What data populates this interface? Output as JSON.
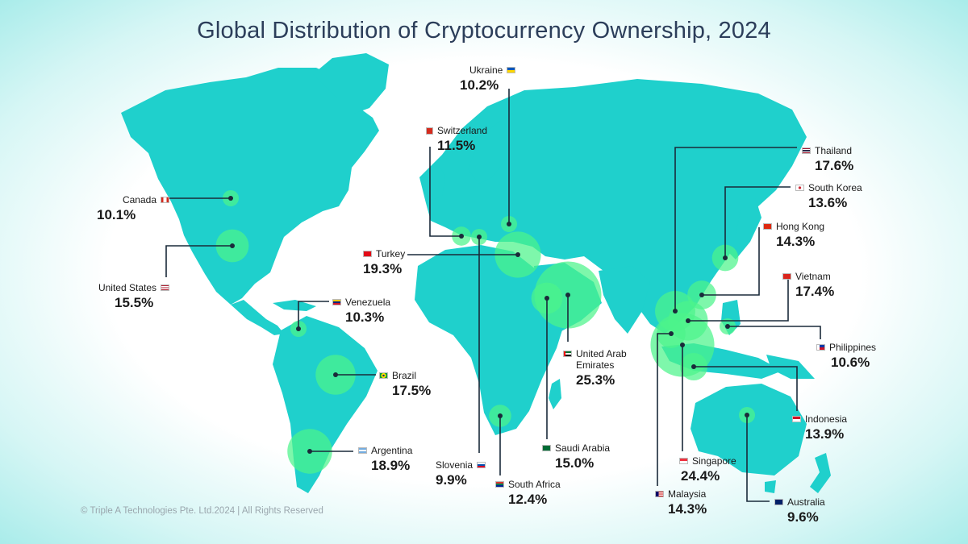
{
  "title": "Global Distribution of Cryptocurrency Ownership, 2024",
  "footer": "© Triple A Technologies Pte. Ltd.2024 | All Rights Reserved",
  "colors": {
    "land": "#1fd0cc",
    "bubble": "#4cf48a",
    "line": "#1a2a3a"
  },
  "countries": [
    {
      "key": "canada",
      "name": "Canada",
      "value": "10.1%",
      "pct": 10.1,
      "flag": "flag-canada"
    },
    {
      "key": "us",
      "name": "United States",
      "value": "15.5%",
      "pct": 15.5,
      "flag": "flag-usa"
    },
    {
      "key": "venezuela",
      "name": "Venezuela",
      "value": "10.3%",
      "pct": 10.3,
      "flag": "flag-venezuela"
    },
    {
      "key": "brazil",
      "name": "Brazil",
      "value": "17.5%",
      "pct": 17.5,
      "flag": "flag-brazil"
    },
    {
      "key": "argentina",
      "name": "Argentina",
      "value": "18.9%",
      "pct": 18.9,
      "flag": "flag-argentina"
    },
    {
      "key": "ukraine",
      "name": "Ukraine",
      "value": "10.2%",
      "pct": 10.2,
      "flag": "flag-ukraine"
    },
    {
      "key": "switzerland",
      "name": "Switzerland",
      "value": "11.5%",
      "pct": 11.5,
      "flag": "flag-switzerland"
    },
    {
      "key": "turkey",
      "name": "Turkey",
      "value": "19.3%",
      "pct": 19.3,
      "flag": "flag-turkey"
    },
    {
      "key": "slovenia",
      "name": "Slovenia",
      "value": "9.9%",
      "pct": 9.9,
      "flag": "flag-slovenia"
    },
    {
      "key": "southafrica",
      "name": "South Africa",
      "value": "12.4%",
      "pct": 12.4,
      "flag": "flag-south-africa"
    },
    {
      "key": "saudi",
      "name": "Saudi Arabia",
      "value": "15.0%",
      "pct": 15.0,
      "flag": "flag-saudi-arabia"
    },
    {
      "key": "uae",
      "name": "United Arab Emirates",
      "name_line1": "United Arab",
      "name_line2": "Emirates",
      "value": "25.3%",
      "pct": 25.3,
      "flag": "flag-uae"
    },
    {
      "key": "thailand",
      "name": "Thailand",
      "value": "17.6%",
      "pct": 17.6,
      "flag": "flag-thailand"
    },
    {
      "key": "southkorea",
      "name": "South Korea",
      "value": "13.6%",
      "pct": 13.6,
      "flag": "flag-south-korea"
    },
    {
      "key": "hongkong",
      "name": "Hong Kong",
      "value": "14.3%",
      "pct": 14.3,
      "flag": "flag-hong-kong"
    },
    {
      "key": "vietnam",
      "name": "Vietnam",
      "value": "17.4%",
      "pct": 17.4,
      "flag": "flag-vietnam"
    },
    {
      "key": "philippines",
      "name": "Philippines",
      "value": "10.6%",
      "pct": 10.6,
      "flag": "flag-philippines"
    },
    {
      "key": "indonesia",
      "name": "Indonesia",
      "value": "13.9%",
      "pct": 13.9,
      "flag": "flag-indonesia"
    },
    {
      "key": "singapore",
      "name": "Singapore",
      "value": "24.4%",
      "pct": 24.4,
      "flag": "flag-singapore"
    },
    {
      "key": "malaysia",
      "name": "Malaysia",
      "value": "14.3%",
      "pct": 14.3,
      "flag": "flag-malaysia"
    },
    {
      "key": "australia",
      "name": "Australia",
      "value": "9.6%",
      "pct": 9.6,
      "flag": "flag-australia"
    }
  ]
}
